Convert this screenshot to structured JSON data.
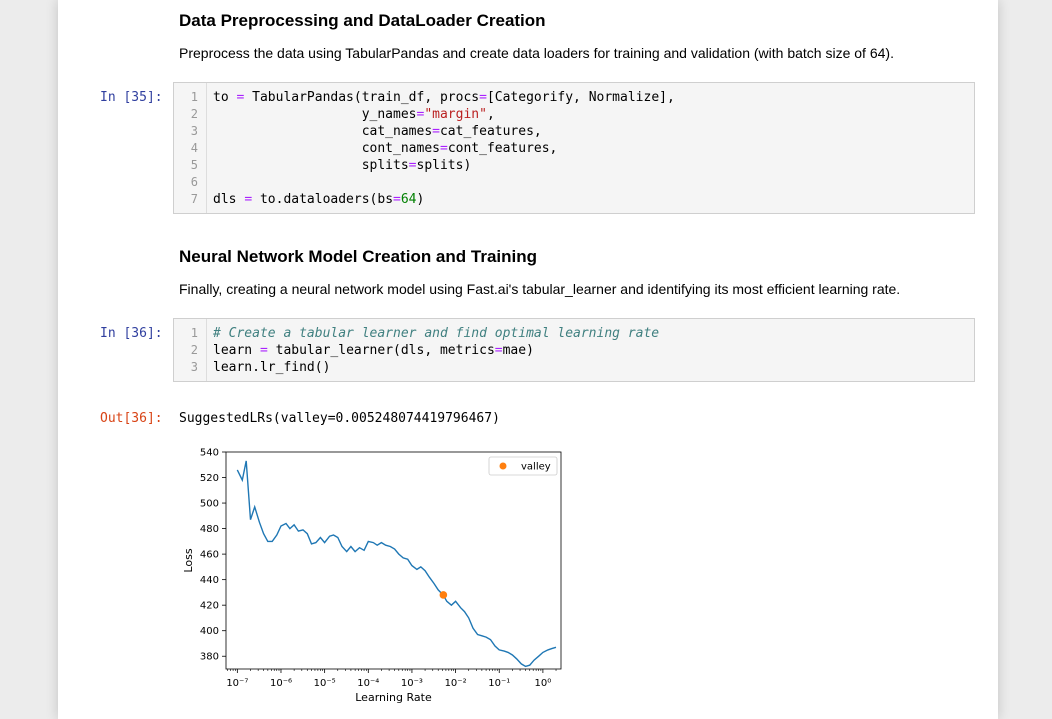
{
  "section1": {
    "heading": "Data Preprocessing and DataLoader Creation",
    "description": "Preprocess the data using TabularPandas and create data loaders for training and validation (with batch size of 64)."
  },
  "cell35": {
    "prompt": "In [35]:",
    "lines": [
      {
        "n": "1",
        "code": "to = TabularPandas(train_df, procs=[Categorify, Normalize],"
      },
      {
        "n": "2",
        "code": "                   y_names=\"margin\","
      },
      {
        "n": "3",
        "code": "                   cat_names=cat_features,"
      },
      {
        "n": "4",
        "code": "                   cont_names=cont_features,"
      },
      {
        "n": "5",
        "code": "                   splits=splits)"
      },
      {
        "n": "6",
        "code": ""
      },
      {
        "n": "7",
        "code": "dls = to.dataloaders(bs=64)"
      }
    ]
  },
  "section2": {
    "heading": "Neural Network Model Creation and Training",
    "description": "Finally, creating a neural network model using Fast.ai's tabular_learner and identifying its most efficient learning rate."
  },
  "cell36": {
    "prompt": "In [36]:",
    "lines": [
      {
        "n": "1",
        "code": "# Create a tabular learner and find optimal learning rate"
      },
      {
        "n": "2",
        "code": "learn = tabular_learner(dls, metrics=mae)"
      },
      {
        "n": "3",
        "code": "learn.lr_find()"
      }
    ],
    "out_prompt": "Out[36]:",
    "output_text": "SuggestedLRs(valley=0.005248074419796467)"
  },
  "chart_data": {
    "type": "line",
    "xlabel": "Learning Rate",
    "ylabel": "Loss",
    "xscale": "log",
    "xlim": [
      1e-07,
      1.0
    ],
    "ylim": [
      370,
      540
    ],
    "yticks": [
      380,
      400,
      420,
      440,
      460,
      480,
      500,
      520,
      540
    ],
    "xtick_labels": [
      "10⁻⁷",
      "10⁻⁶",
      "10⁻⁵",
      "10⁻⁴",
      "10⁻³",
      "10⁻²",
      "10⁻¹",
      "10⁰"
    ],
    "series": [
      {
        "color": "#1f77b4",
        "x": [
          1e-07,
          1.3e-07,
          1.6e-07,
          2e-07,
          2.5e-07,
          3.2e-07,
          4e-07,
          5e-07,
          6.3e-07,
          8e-07,
          1e-06,
          1.3e-06,
          1.6e-06,
          2e-06,
          2.5e-06,
          3.2e-06,
          4e-06,
          5e-06,
          6.3e-06,
          8e-06,
          1e-05,
          1.3e-05,
          1.6e-05,
          2e-05,
          2.5e-05,
          3.2e-05,
          4e-05,
          5e-05,
          6.3e-05,
          8e-05,
          0.0001,
          0.00013,
          0.00016,
          0.0002,
          0.00025,
          0.00032,
          0.0004,
          0.0005,
          0.00063,
          0.0008,
          0.001,
          0.0013,
          0.0016,
          0.002,
          0.0025,
          0.0032,
          0.004,
          0.0052,
          0.0063,
          0.008,
          0.01,
          0.013,
          0.016,
          0.02,
          0.025,
          0.032,
          0.04,
          0.05,
          0.063,
          0.08,
          0.1,
          0.13,
          0.16,
          0.2,
          0.25,
          0.32,
          0.4,
          0.5,
          0.63,
          0.8,
          1.0,
          1.3,
          1.6,
          2.0
        ],
        "y": [
          526,
          518,
          533,
          487,
          497,
          485,
          476,
          470,
          470,
          475,
          482,
          484,
          480,
          483,
          478,
          479,
          476,
          468,
          469,
          473,
          469,
          474,
          475,
          473,
          466,
          462,
          466,
          462,
          465,
          463,
          470,
          469,
          467,
          469,
          467,
          466,
          464,
          460,
          457,
          456,
          451,
          448,
          450,
          447,
          442,
          437,
          432,
          428,
          423,
          420,
          423,
          418,
          415,
          410,
          402,
          397,
          396,
          395,
          393,
          388,
          385,
          384,
          383,
          381,
          378,
          374,
          372,
          373,
          377,
          380,
          383,
          385,
          386,
          387
        ]
      }
    ],
    "points": [
      {
        "name": "valley",
        "x": 0.005248074419796467,
        "y": 428,
        "color": "#ff7f0e"
      }
    ],
    "legend_position": "top-right"
  }
}
